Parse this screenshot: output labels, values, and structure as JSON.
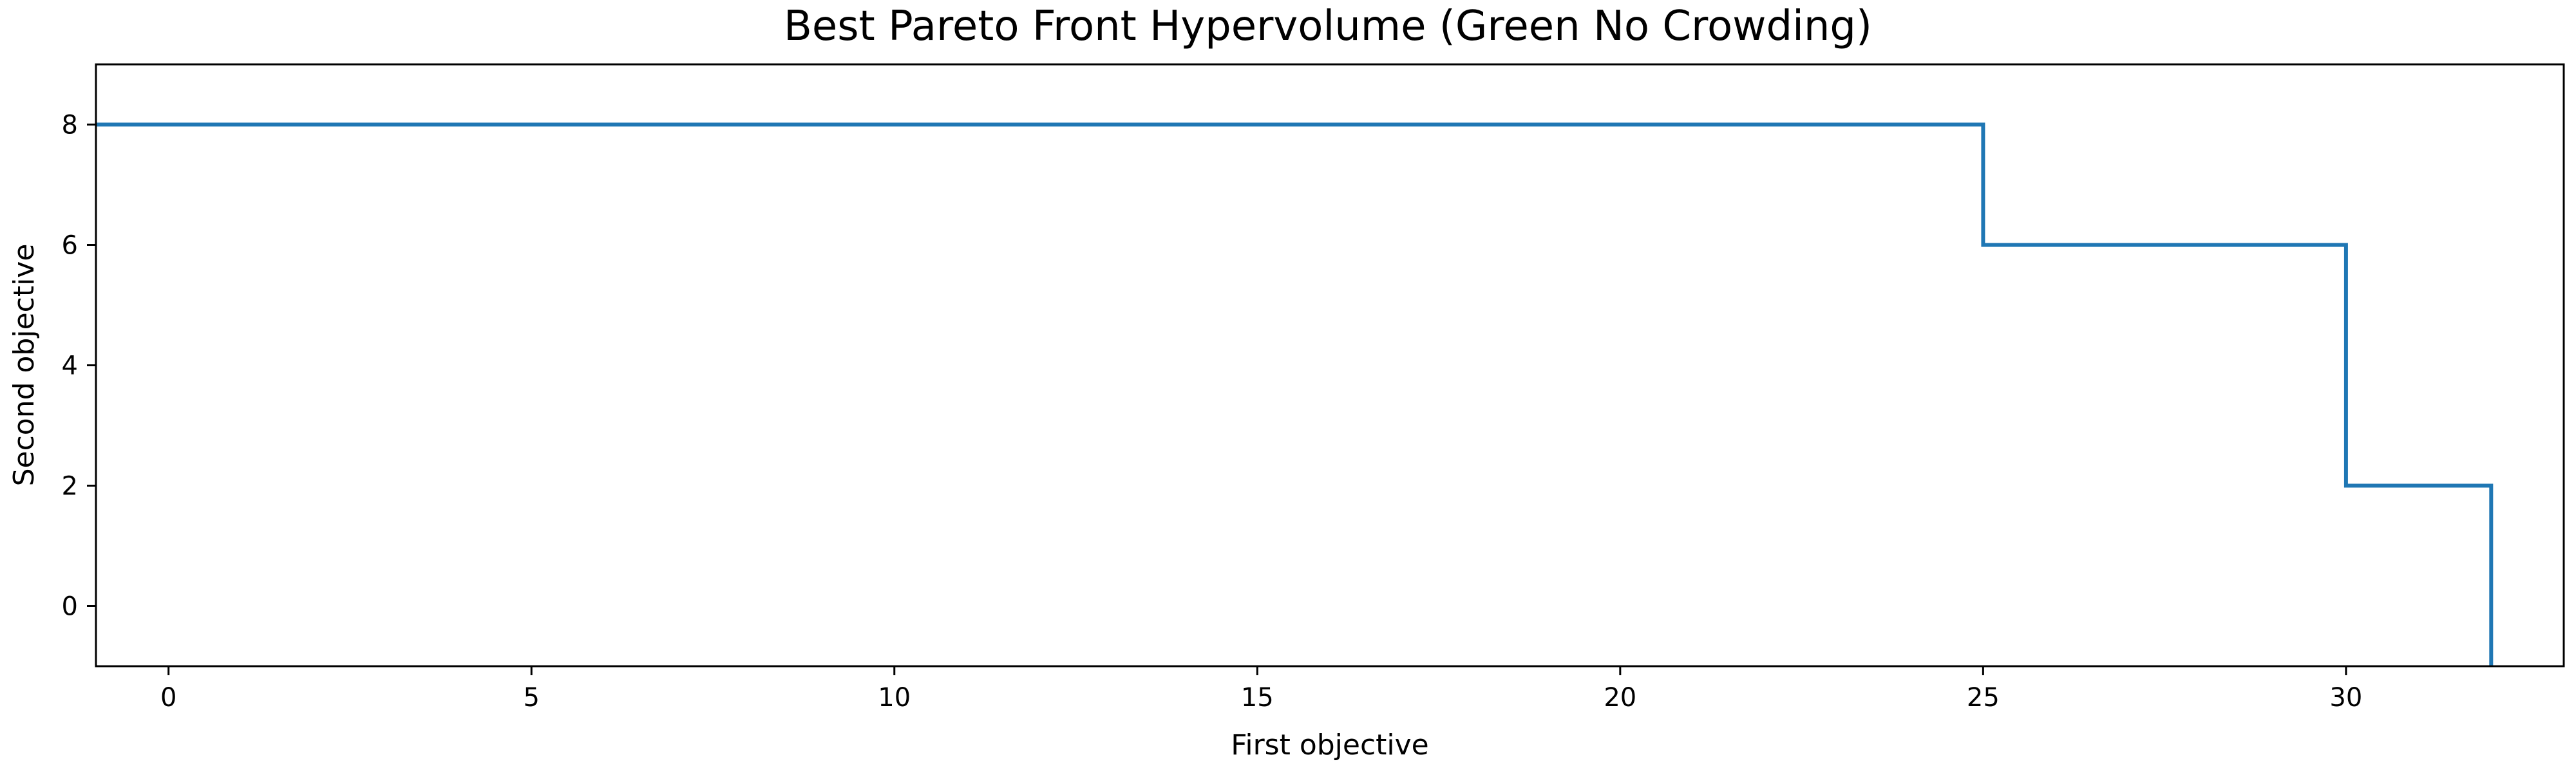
{
  "chart_data": {
    "type": "line",
    "drawstyle": "steps-post",
    "title": "Best Pareto Front Hypervolume (Green No Crowding)",
    "xlabel": "First objective",
    "ylabel": "Second objective",
    "xlim": [
      -1,
      33
    ],
    "ylim": [
      -1,
      9
    ],
    "xticks": [
      0,
      5,
      10,
      15,
      20,
      25,
      30
    ],
    "yticks": [
      0,
      2,
      4,
      6,
      8
    ],
    "grid": false,
    "legend": "none",
    "series": [
      {
        "x": [
          -1,
          25,
          25,
          30,
          30,
          32,
          32
        ],
        "y": [
          8,
          8,
          6,
          6,
          2,
          2,
          -1
        ],
        "color": "#1f77b4"
      }
    ]
  }
}
